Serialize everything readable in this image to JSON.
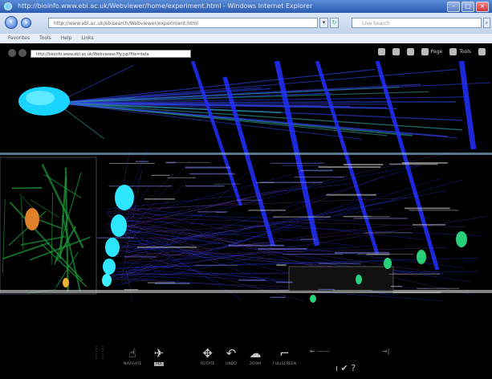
{
  "window": {
    "title": "http://bioinfo.www.ebi.ac.uk/Webviewer/home/experiment.html - Windows Internet Explorer",
    "controls": [
      "minimize",
      "maximize",
      "close"
    ]
  },
  "browser": {
    "url": "http://www.ebi.ac.uk/ebisearch/Webviewer/experiment.html",
    "search_placeholder": "Live Search",
    "links": [
      "Favorites",
      "Tools",
      "Help",
      "Links"
    ]
  },
  "viewer": {
    "address": "http://bioinfo.www.ebi.ac.uk/Webviewer/fly.jsp?file=data",
    "toolbar": [
      {
        "icon": "home-icon",
        "label": ""
      },
      {
        "icon": "feed-icon",
        "label": ""
      },
      {
        "icon": "print-icon",
        "label": ""
      },
      {
        "icon": "page-icon",
        "label": "Page"
      },
      {
        "icon": "tools-icon",
        "label": "Tools"
      },
      {
        "icon": "help-icon",
        "label": ""
      }
    ]
  },
  "bottom_controls": [
    {
      "name": "navigate-control",
      "icon": "pointer-icon",
      "label": "NAVIGATE",
      "selected": false
    },
    {
      "name": "fly-control",
      "icon": "fly-icon",
      "label": "FLY",
      "selected": true
    },
    {
      "name": "rotate-control",
      "icon": "move-icon",
      "label": "ROTATE",
      "selected": false
    },
    {
      "name": "undo-control",
      "icon": "undo-icon",
      "label": "UNDO",
      "selected": false
    },
    {
      "name": "zoom-control",
      "icon": "zoom-icon",
      "label": "ZOOM",
      "selected": false
    },
    {
      "name": "fullscreen-control",
      "icon": "fullscreen-icon",
      "label": "FULLSCREEN",
      "selected": false
    }
  ],
  "colors": {
    "background": "#000000",
    "line_blue": "#2a3cff",
    "line_green": "#1e9a3a",
    "node_cyan": "#2fe6ff",
    "node_green": "#27d07a"
  }
}
